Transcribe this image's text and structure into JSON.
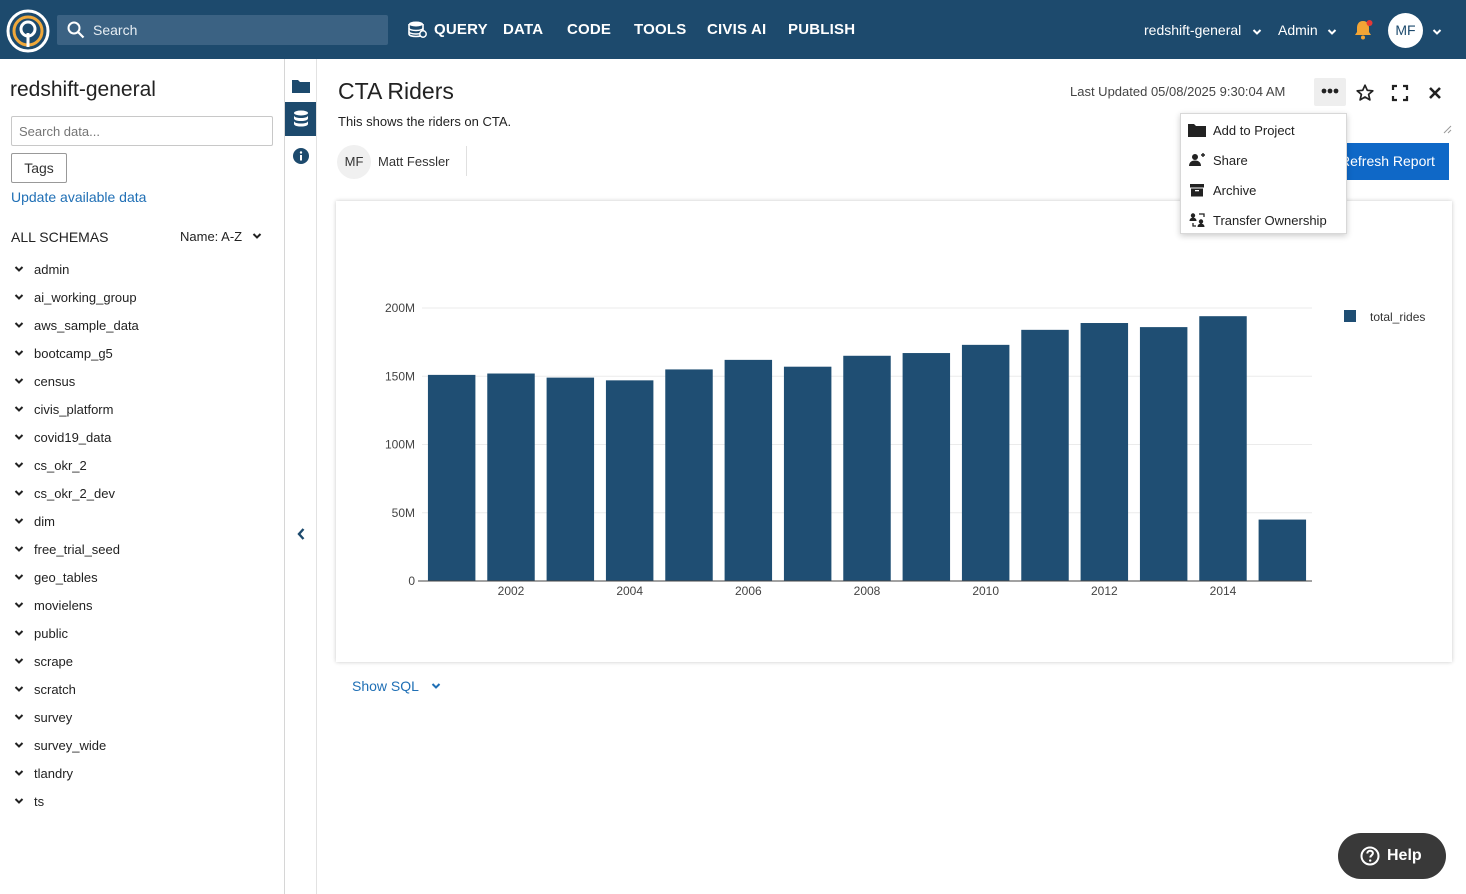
{
  "nav": {
    "search_placeholder": "Search",
    "items": [
      "QUERY",
      "DATA",
      "CODE",
      "TOOLS",
      "CIVIS AI",
      "PUBLISH"
    ],
    "database": "redshift-general",
    "role": "Admin",
    "user_initials": "MF"
  },
  "sidebar": {
    "title": "redshift-general",
    "search_placeholder": "Search data...",
    "tags_label": "Tags",
    "update_link": "Update available data",
    "schemas_heading": "ALL SCHEMAS",
    "sort_label": "Name: A-Z",
    "schemas": [
      "admin",
      "ai_working_group",
      "aws_sample_data",
      "bootcamp_g5",
      "census",
      "civis_platform",
      "covid19_data",
      "cs_okr_2",
      "cs_okr_2_dev",
      "dim",
      "free_trial_seed",
      "geo_tables",
      "movielens",
      "public",
      "scrape",
      "scratch",
      "survey",
      "survey_wide",
      "tlandry",
      "ts"
    ]
  },
  "report": {
    "title": "CTA Riders",
    "description": "This shows the riders on CTA.",
    "owner_initials": "MF",
    "owner_name": "Matt Fessler",
    "last_updated": "Last Updated 05/08/2025 9:30:04 AM",
    "refresh_label": "Refresh Report",
    "show_sql": "Show SQL"
  },
  "menu": {
    "items": [
      {
        "label": "Add to Project",
        "icon": "folder-icon"
      },
      {
        "label": "Share",
        "icon": "share-user-icon"
      },
      {
        "label": "Archive",
        "icon": "archive-icon"
      },
      {
        "label": "Transfer Ownership",
        "icon": "transfer-icon"
      }
    ]
  },
  "help_label": "Help",
  "colors": {
    "nav_bg": "#1d4a6d",
    "bar": "#1f4e73",
    "link": "#1f6fb5",
    "primary_button": "#0f68c7"
  },
  "chart_data": {
    "type": "bar",
    "x": [
      2001,
      2002,
      2003,
      2004,
      2005,
      2006,
      2007,
      2008,
      2009,
      2010,
      2011,
      2012,
      2013,
      2014,
      2015
    ],
    "series": [
      {
        "name": "total_rides",
        "values": [
          151000000,
          152000000,
          149000000,
          147000000,
          155000000,
          162000000,
          157000000,
          165000000,
          167000000,
          173000000,
          184000000,
          189000000,
          186000000,
          194000000,
          45000000
        ]
      }
    ],
    "x_ticks": [
      "2002",
      "2004",
      "2006",
      "2008",
      "2010",
      "2012",
      "2014"
    ],
    "y_ticks": [
      "0",
      "50M",
      "100M",
      "150M",
      "200M"
    ],
    "ylim": [
      0,
      200000000
    ],
    "legend_position": "top-right",
    "grid": true
  }
}
